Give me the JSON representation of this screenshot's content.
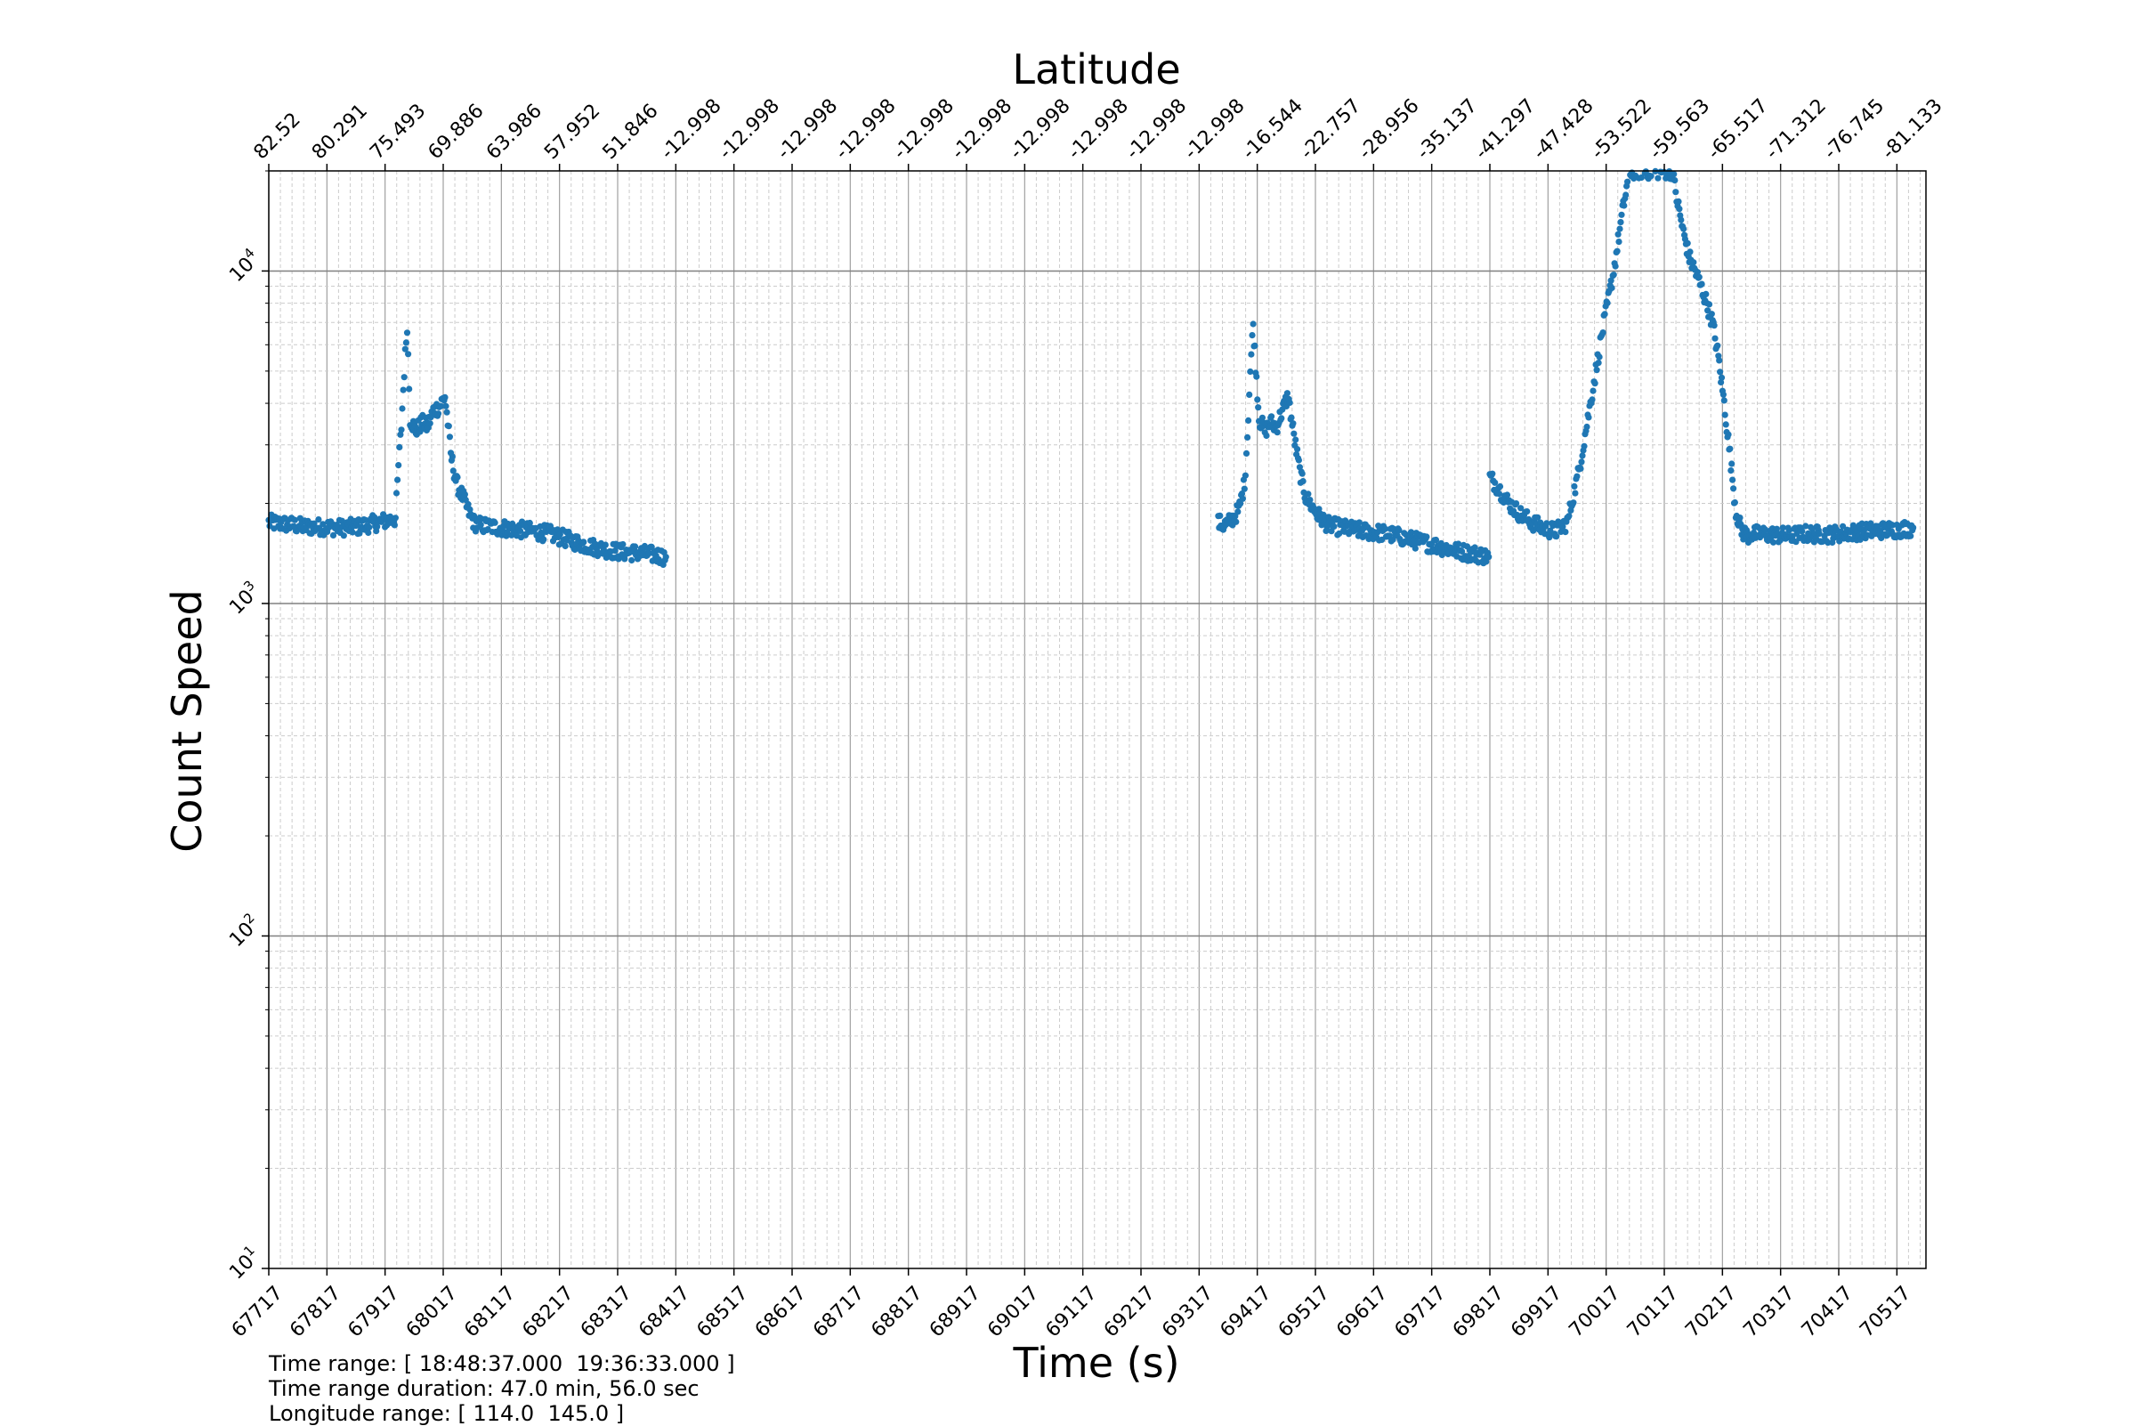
{
  "chart_data": {
    "type": "scatter",
    "title": "",
    "xlabel": "Time (s)",
    "ylabel": "Count Speed",
    "top_axis_label": "Latitude",
    "y_scale": "log",
    "xlim": [
      67717,
      70567
    ],
    "ylim": [
      10,
      20000
    ],
    "grid": true,
    "x_ticks": [
      67717,
      67817,
      67917,
      68017,
      68117,
      68217,
      68317,
      68417,
      68517,
      68617,
      68717,
      68817,
      68917,
      69017,
      69117,
      69217,
      69317,
      69417,
      69517,
      69617,
      69717,
      69817,
      69917,
      70017,
      70117,
      70217,
      70317,
      70417,
      70517
    ],
    "x_tick_labels": [
      "67717",
      "67817",
      "67917",
      "68017",
      "68117",
      "68217",
      "68317",
      "68417",
      "68517",
      "68617",
      "68717",
      "68817",
      "68917",
      "69017",
      "69117",
      "69217",
      "69317",
      "69417",
      "69517",
      "69617",
      "69717",
      "69817",
      "69917",
      "70017",
      "70117",
      "70217",
      "70317",
      "70417",
      "70517"
    ],
    "latitude_tick_labels": [
      "82.52",
      "80.291",
      "75.493",
      "69.886",
      "63.986",
      "57.952",
      "51.846",
      "-12.998",
      "-12.998",
      "-12.998",
      "-12.998",
      "-12.998",
      "-12.998",
      "-12.998",
      "-12.998",
      "-12.998",
      "-12.998",
      "-16.544",
      "-22.757",
      "-28.956",
      "-35.137",
      "-41.297",
      "-47.428",
      "-53.522",
      "-59.563",
      "-65.517",
      "-71.312",
      "-76.745",
      "-81.133"
    ],
    "y_ticks": [
      10,
      100,
      1000,
      10000
    ],
    "y_tick_labels": [
      {
        "base": "10",
        "exp": "1"
      },
      {
        "base": "10",
        "exp": "2"
      },
      {
        "base": "10",
        "exp": "3"
      },
      {
        "base": "10",
        "exp": "4"
      }
    ],
    "marker_color": "#1f77b4",
    "series": [
      {
        "segments": [
          {
            "x": [
              67717,
              67750,
              67780,
              67810,
              67840,
              67870,
              67935,
              67940,
              67945,
              67950,
              67955,
              67960,
              67970,
              67980,
              67990,
              68000,
              68010,
              68020,
              68025,
              68030,
              68040,
              68050,
              68060,
              68070,
              68080,
              68100,
              68130,
              68160,
              68200,
              68230,
              68260,
              68290,
              68320,
              68350,
              68380,
              68400
            ],
            "y": [
              1750,
              1730,
              1700,
              1700,
              1690,
              1700,
              1800,
              2600,
              3400,
              5000,
              6900,
              3600,
              3300,
              3500,
              3400,
              3800,
              3900,
              4200,
              3500,
              2800,
              2300,
              2100,
              1900,
              1750,
              1720,
              1700,
              1680,
              1660,
              1620,
              1560,
              1500,
              1460,
              1430,
              1420,
              1400,
              1380
            ]
          },
          {
            "x": [
              69350,
              69360,
              69370,
              69385,
              69395,
              69400,
              69405,
              69410,
              69420,
              69430,
              69440,
              69450,
              69460,
              69470,
              69480,
              69490,
              69500,
              69520,
              69540,
              69570,
              69600,
              69640,
              69680,
              69720,
              69760,
              69800,
              69815
            ],
            "y": [
              1750,
              1720,
              1760,
              1900,
              2300,
              3200,
              5000,
              6900,
              3600,
              3300,
              3500,
              3400,
              3800,
              4200,
              3200,
              2500,
              2100,
              1850,
              1720,
              1680,
              1650,
              1620,
              1560,
              1500,
              1440,
              1400,
              1380
            ]
          },
          {
            "x": [
              69817,
              69830,
              69850,
              69870,
              69890,
              69910,
              69930,
              69950,
              69970,
              69990,
              70010,
              70030,
              70045,
              70055,
              70060,
              70130,
              70135,
              70140,
              70150,
              70160,
              70170,
              70180,
              70190,
              70200,
              70210,
              70220,
              70230,
              70240,
              70250,
              70260,
              70280,
              70300,
              70330,
              70360,
              70400,
              70430,
              70460,
              70490,
              70520,
              70545
            ],
            "y": [
              2400,
              2250,
              2000,
              1850,
              1750,
              1680,
              1650,
              1750,
              2500,
              4000,
              6500,
              10000,
              15000,
              19000,
              20000,
              20000,
              18000,
              16000,
              13000,
              11000,
              10000,
              9000,
              8000,
              7000,
              5500,
              4000,
              2800,
              1900,
              1650,
              1600,
              1620,
              1610,
              1600,
              1620,
              1610,
              1630,
              1650,
              1660,
              1670,
              1690
            ]
          }
        ]
      }
    ]
  },
  "footer": {
    "time_range": "Time range: [ 18:48:37.000  19:36:33.000 ]",
    "time_range_duration": "Time range duration: 47.0 min, 56.0 sec",
    "longitude_range": "Longitude range: [ 114.0  145.0 ]"
  }
}
